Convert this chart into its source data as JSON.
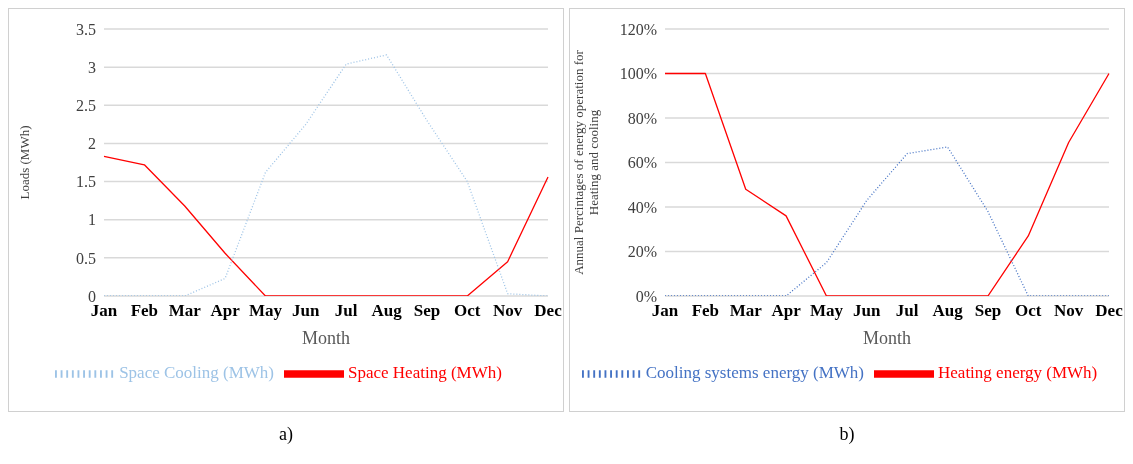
{
  "chart_data": [
    {
      "type": "line",
      "xlabel": "Month",
      "ylabel": "Loads (MWh)",
      "categories": [
        "Jan",
        "Feb",
        "Mar",
        "Apr",
        "May",
        "Jun",
        "Jul",
        "Aug",
        "Sep",
        "Oct",
        "Nov",
        "Dec"
      ],
      "series": [
        {
          "name": "Space Heating (MWh)",
          "color": "#ff0000",
          "line_style": "solid",
          "values": [
            1.83,
            1.72,
            1.18,
            0.56,
            0,
            0,
            0,
            0,
            0,
            0,
            0.45,
            1.56
          ]
        },
        {
          "name": "Space Cooling (MWh)",
          "color": "#9dc3e6",
          "line_style": "dotted",
          "values": [
            0,
            0,
            0,
            0.23,
            1.62,
            2.25,
            3.04,
            3.16,
            2.3,
            1.5,
            0.03,
            0
          ]
        }
      ],
      "ylim": [
        0,
        3.5
      ],
      "yticks": [
        0,
        0.5,
        1,
        1.5,
        2,
        2.5,
        3,
        3.5
      ],
      "grid": "y",
      "legend": "bottom",
      "marker": "none",
      "annotations": [
        "a)"
      ]
    },
    {
      "type": "line",
      "xlabel": "Month",
      "ylabel": "Annual Percintages of energy operation  for Heating and cooling",
      "categories": [
        "Jan",
        "Feb",
        "Mar",
        "Apr",
        "May",
        "Jun",
        "Jul",
        "Aug",
        "Sep",
        "Oct",
        "Nov",
        "Dec"
      ],
      "series": [
        {
          "name": "Heating energy (MWh)",
          "color": "#ff0000",
          "line_style": "solid",
          "values": [
            100,
            100,
            48,
            36,
            0,
            0,
            0,
            0,
            0,
            27,
            69,
            100
          ]
        },
        {
          "name": "Cooling systems energy (MWh)",
          "color": "#4472c4",
          "line_style": "dotted",
          "values": [
            0,
            0,
            0,
            0,
            15,
            43,
            64,
            67,
            38,
            0,
            0,
            0
          ]
        }
      ],
      "ylim": [
        0,
        120
      ],
      "yticks": [
        {
          "value": 0,
          "label": "0%"
        },
        {
          "value": 20,
          "label": "20%"
        },
        {
          "value": 40,
          "label": "40%"
        },
        {
          "value": 60,
          "label": "60%"
        },
        {
          "value": 80,
          "label": "80%"
        },
        {
          "value": 100,
          "label": "100%"
        },
        {
          "value": 120,
          "label": "120%"
        }
      ],
      "grid": "y",
      "legend": "bottom",
      "marker": "none",
      "annotations": [
        "b)"
      ]
    }
  ]
}
